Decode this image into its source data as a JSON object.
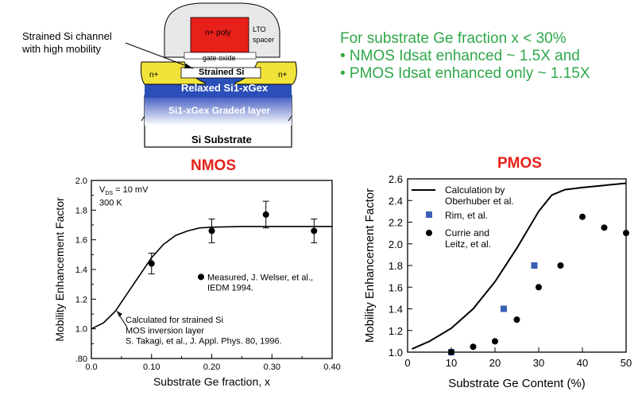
{
  "device": {
    "channel_label_line1": "Strained Si channel",
    "channel_label_line2": "with high mobility",
    "gate_label": "n+ poly",
    "lto_label": "LTO",
    "spacer_label": "spacer",
    "oxide_label": "gate oxide",
    "strained_label": "Strained Si",
    "n_left": "n+",
    "n_right": "n+",
    "relaxed_label": "Relaxed Si1-xGex",
    "graded_label": "Si1-xGex Graded layer",
    "substrate_label": "Si Substrate"
  },
  "bullets": [
    "For substrate Ge fraction x < 30%",
    "• NMOS Idsat enhanced ~ 1.5X and",
    "• PMOS Idsat enhanced only ~ 1.15X"
  ],
  "colors": {
    "bullet_text": "#2fa84a",
    "chart_title": "#e8201a",
    "rim_marker": "#3a5fb5",
    "gate": "#e8201a",
    "sige": "#2a4fb8",
    "ndiff": "#f2e33a"
  },
  "chart_data": [
    {
      "type": "scatter",
      "title": "NMOS",
      "xlabel": "Substrate Ge fraction, x",
      "ylabel": "Mobility Enhancement Factor",
      "xlim": [
        0,
        0.4
      ],
      "ylim": [
        0.8,
        2.0
      ],
      "xticks": [
        "0.0",
        "0.10",
        "0.20",
        "0.30",
        "0.40"
      ],
      "yticks": [
        ".80",
        "1.0",
        "1.2",
        "1.4",
        "1.6",
        "1.8",
        "2.0"
      ],
      "annotations": {
        "vds": "V = 10 mV",
        "vds_sub": "DS",
        "temp": "300 K",
        "meas_line1": "Measured, J. Welser, et al.,",
        "meas_line2": "IEDM 1994.",
        "calc_line1": "Calculated for strained Si",
        "calc_line2": "MOS inversion layer",
        "calc_line3": "S. Takagi, et al., J. Appl. Phys. 80, 1996."
      },
      "series": [
        {
          "name": "Measured, J. Welser, et al., IEDM 1994.",
          "kind": "points",
          "x": [
            0.1,
            0.2,
            0.29,
            0.37
          ],
          "y": [
            1.44,
            1.66,
            1.77,
            1.66
          ],
          "err": [
            0.07,
            0.08,
            0.09,
            0.08
          ]
        },
        {
          "name": "Calculated for strained Si MOS inversion layer",
          "kind": "line",
          "x": [
            0,
            0.02,
            0.04,
            0.06,
            0.08,
            0.1,
            0.12,
            0.14,
            0.16,
            0.18,
            0.2,
            0.25,
            0.3,
            0.35,
            0.4
          ],
          "y": [
            1.0,
            1.04,
            1.12,
            1.24,
            1.36,
            1.48,
            1.57,
            1.63,
            1.66,
            1.68,
            1.685,
            1.69,
            1.69,
            1.69,
            1.69
          ]
        }
      ]
    },
    {
      "type": "scatter",
      "title": "PMOS",
      "xlabel": "Substrate Ge Content (%)",
      "ylabel": "Mobility Enhancement Factor",
      "xlim": [
        0,
        50
      ],
      "ylim": [
        1.0,
        2.6
      ],
      "xticks": [
        "0",
        "10",
        "20",
        "30",
        "40",
        "50"
      ],
      "yticks": [
        "1.0",
        "1.2",
        "1.4",
        "1.6",
        "1.8",
        "2.0",
        "2.2",
        "2.4",
        "2.6"
      ],
      "legend": [
        {
          "line1": "Calculation by",
          "line2": "Oberhuber et al."
        },
        {
          "line1": "Rim, et al.",
          "line2": ""
        },
        {
          "line1": "Currie and",
          "line2": "Leitz, et al."
        }
      ],
      "series": [
        {
          "name": "Calculation by Oberhuber et al.",
          "kind": "line",
          "x": [
            1,
            5,
            10,
            15,
            20,
            25,
            30,
            33,
            36,
            40,
            45,
            50
          ],
          "y": [
            1.03,
            1.1,
            1.22,
            1.4,
            1.65,
            1.96,
            2.3,
            2.45,
            2.5,
            2.52,
            2.54,
            2.56
          ]
        },
        {
          "name": "Rim, et al.",
          "kind": "squares",
          "x": [
            10,
            22,
            29
          ],
          "y": [
            1.0,
            1.4,
            1.8
          ]
        },
        {
          "name": "Currie and Leitz, et al.",
          "kind": "points",
          "x": [
            10,
            15,
            20,
            25,
            30,
            35,
            40,
            45,
            50
          ],
          "y": [
            1.0,
            1.05,
            1.1,
            1.3,
            1.6,
            1.8,
            2.25,
            2.15,
            2.1
          ]
        }
      ]
    }
  ]
}
